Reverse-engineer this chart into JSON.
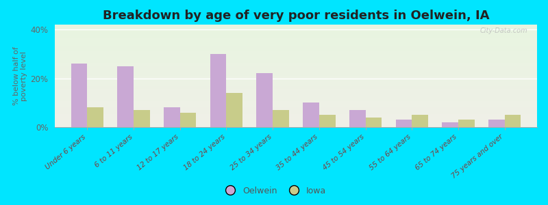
{
  "title": "Breakdown by age of very poor residents in Oelwein, IA",
  "ylabel": "% below half of\npoverty level",
  "categories": [
    "Under 6 years",
    "6 to 11 years",
    "12 to 17 years",
    "18 to 24 years",
    "25 to 34 years",
    "35 to 44 years",
    "45 to 54 years",
    "55 to 64 years",
    "65 to 74 years",
    "75 years and over"
  ],
  "oelwein_values": [
    26,
    25,
    8,
    30,
    22,
    10,
    7,
    3,
    2,
    3
  ],
  "iowa_values": [
    8,
    7,
    6,
    14,
    7,
    5,
    4,
    5,
    3,
    5
  ],
  "oelwein_color": "#c9a8d4",
  "iowa_color": "#c8cc8a",
  "background_outer": "#00e5ff",
  "background_plot_top": "#e8f5e0",
  "background_plot_bottom": "#f0f0e8",
  "ylim": [
    0,
    42
  ],
  "yticks": [
    0,
    20,
    40
  ],
  "ytick_labels": [
    "0%",
    "20%",
    "40%"
  ],
  "bar_width": 0.35,
  "title_fontsize": 13,
  "legend_labels": [
    "Oelwein",
    "Iowa"
  ],
  "watermark": "City-Data.com"
}
